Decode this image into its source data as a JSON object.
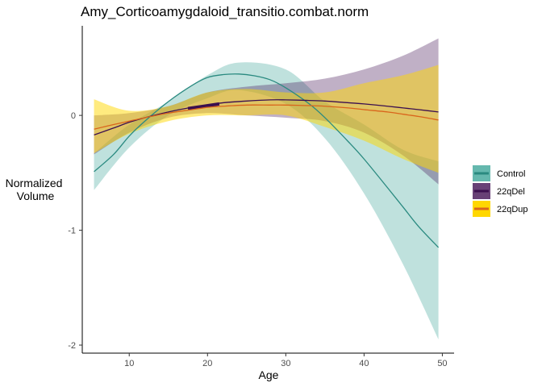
{
  "chart_data": {
    "type": "line",
    "title": "Amy_Corticoamygdaloid_transitio.combat.norm",
    "xlabel": "Age",
    "ylabel_lines": [
      "Normalized",
      "Volume"
    ],
    "xlim": [
      4,
      51.5
    ],
    "ylim": [
      -2.07,
      0.78
    ],
    "xticks": [
      10,
      20,
      30,
      40,
      50
    ],
    "yticks": [
      -2,
      -1,
      0
    ],
    "ytick_labels": [
      "-2",
      "-1",
      "0"
    ],
    "grid": false,
    "legend_position": "right",
    "series": [
      {
        "name": "Control",
        "fill": "#2a9d8f",
        "fill_opacity": 0.3,
        "line": "#2a8a80",
        "ribbon_x": [
          5.5,
          10,
          15,
          20,
          24,
          30,
          35,
          40,
          45,
          49.5
        ],
        "ribbon_lower": [
          -0.65,
          -0.28,
          0.0,
          0.15,
          0.22,
          0.1,
          -0.2,
          -0.68,
          -1.3,
          -1.95
        ],
        "ribbon_upper": [
          -0.33,
          -0.08,
          0.12,
          0.35,
          0.46,
          0.4,
          0.12,
          -0.08,
          -0.3,
          -0.4
        ],
        "x": [
          5.5,
          8,
          10,
          12,
          15,
          18,
          20,
          22,
          24,
          26,
          28,
          30,
          33,
          35,
          38,
          40,
          43,
          45,
          47,
          49.5
        ],
        "y": [
          -0.49,
          -0.34,
          -0.18,
          -0.05,
          0.12,
          0.26,
          0.33,
          0.355,
          0.36,
          0.345,
          0.31,
          0.24,
          0.1,
          -0.02,
          -0.23,
          -0.38,
          -0.63,
          -0.8,
          -0.97,
          -1.15
        ]
      },
      {
        "name": "22qDel",
        "fill": "#4b1d5c",
        "fill_opacity": 0.35,
        "line": "#3b0f4f",
        "ribbon_x": [
          5.5,
          10,
          15,
          20,
          25,
          30,
          35,
          40,
          45,
          49.5
        ],
        "ribbon_lower": [
          -0.34,
          -0.15,
          -0.02,
          0.02,
          0.0,
          -0.02,
          -0.05,
          -0.15,
          -0.35,
          -0.6
        ],
        "ribbon_upper": [
          0.0,
          0.02,
          0.08,
          0.2,
          0.25,
          0.28,
          0.32,
          0.4,
          0.52,
          0.67
        ],
        "x": [
          5.5,
          8,
          10,
          12,
          15,
          18,
          20,
          22,
          25,
          28,
          30,
          33,
          35,
          38,
          40,
          43,
          45,
          47,
          49.5
        ],
        "y": [
          -0.17,
          -0.11,
          -0.06,
          -0.02,
          0.03,
          0.07,
          0.09,
          0.11,
          0.125,
          0.135,
          0.135,
          0.13,
          0.125,
          0.11,
          0.1,
          0.08,
          0.065,
          0.05,
          0.03
        ],
        "highlight_x": [
          17.5,
          21.5
        ],
        "highlight_y": [
          0.06,
          0.1
        ]
      },
      {
        "name": "22qDup",
        "fill": "#ffd700",
        "fill_opacity": 0.5,
        "line": "#d9651c",
        "ribbon_x": [
          5.5,
          10,
          15,
          20,
          25,
          30,
          35,
          40,
          45,
          49.5
        ],
        "ribbon_lower": [
          -0.33,
          -0.16,
          -0.05,
          0.0,
          0.0,
          0.0,
          -0.1,
          -0.22,
          -0.38,
          -0.5
        ],
        "ribbon_upper": [
          0.14,
          0.04,
          0.08,
          0.2,
          0.23,
          0.2,
          0.2,
          0.28,
          0.35,
          0.44
        ],
        "x": [
          5.5,
          8,
          10,
          12,
          15,
          18,
          20,
          22,
          25,
          28,
          30,
          33,
          35,
          38,
          40,
          43,
          45,
          47,
          49.5
        ],
        "y": [
          -0.12,
          -0.08,
          -0.05,
          -0.02,
          0.02,
          0.05,
          0.07,
          0.08,
          0.09,
          0.09,
          0.09,
          0.085,
          0.08,
          0.065,
          0.05,
          0.03,
          0.01,
          -0.01,
          -0.04
        ]
      }
    ]
  }
}
